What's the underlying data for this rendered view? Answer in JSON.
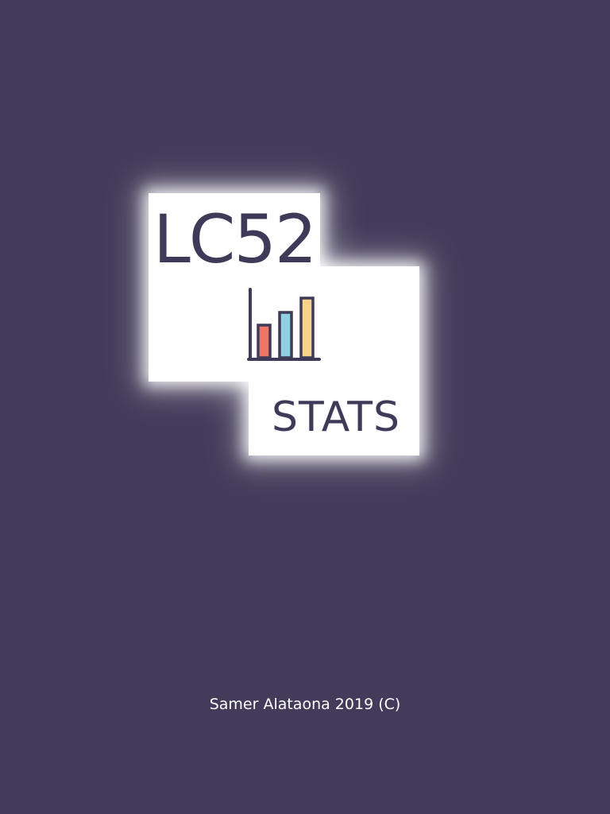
{
  "logo": {
    "title": "LC52",
    "subtitle": "STATS",
    "icon": "bar-chart-icon",
    "bar_colors": [
      "#ef7667",
      "#8fd1e0",
      "#f6d38b"
    ],
    "bar_levels": [
      0.45,
      0.63,
      0.83
    ]
  },
  "footer": {
    "copyright": "Samer Alataona 2019 (C)"
  },
  "colors": {
    "background": "#423b59",
    "ink": "#3f3a57",
    "panel": "#ffffff"
  }
}
